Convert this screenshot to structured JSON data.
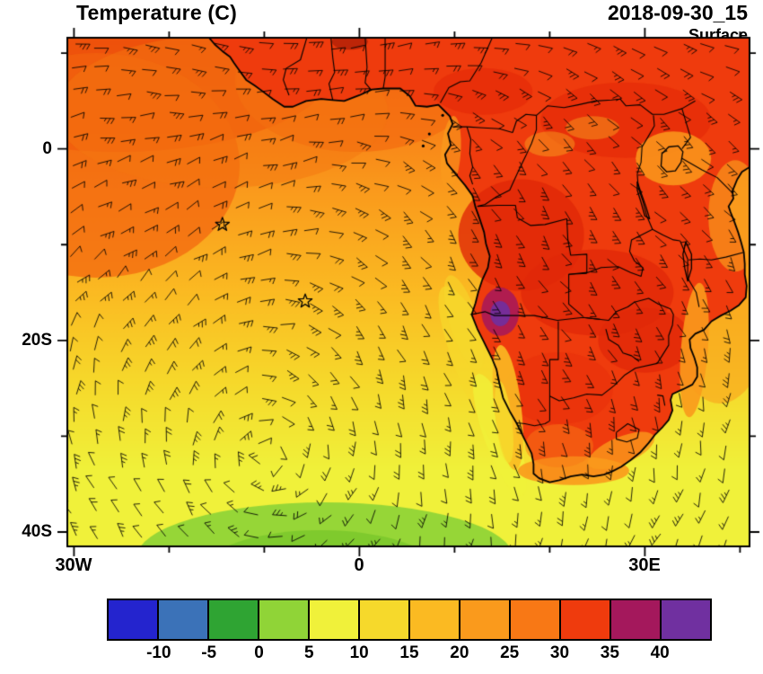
{
  "header": {
    "title": "Temperature (C)",
    "datetime": "2018-09-30_15",
    "level": "Surface"
  },
  "map": {
    "extent": {
      "lon_min": -30.7,
      "lon_max": 41.0,
      "lat_min": -41.5,
      "lat_max": 11.6
    },
    "y_axis": {
      "ticks": [
        {
          "label": "0",
          "lat": 0
        },
        {
          "label": "20S",
          "lat": -20
        },
        {
          "label": "40S",
          "lat": -40
        }
      ]
    },
    "x_axis": {
      "ticks": [
        {
          "label": "30W",
          "lon": -30
        },
        {
          "label": "0",
          "lon": 0
        },
        {
          "label": "30E",
          "lon": 30
        }
      ]
    },
    "markers": [
      {
        "type": "star",
        "lon": -14.4,
        "lat": -7.9
      },
      {
        "type": "star",
        "lon": -5.7,
        "lat": -15.9
      }
    ]
  },
  "colorbar": {
    "labels": [
      "-10",
      "-5",
      "0",
      "5",
      "10",
      "15",
      "20",
      "25",
      "30",
      "35",
      "40"
    ],
    "colors": [
      "#2424CE",
      "#3B72B8",
      "#2FA433",
      "#90D437",
      "#F0F13A",
      "#F6D92B",
      "#FBBA22",
      "#FA9A1C",
      "#F87815",
      "#EF3B0D",
      "#A4185C",
      "#7030A0"
    ]
  }
}
